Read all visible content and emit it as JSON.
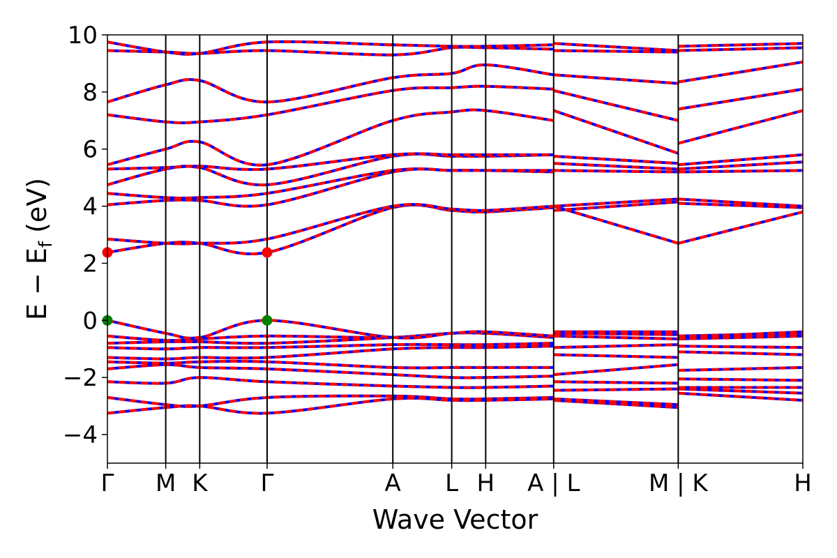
{
  "chart_data": {
    "type": "line",
    "title": "",
    "xlabel": "Wave Vector",
    "ylabel": "E − E_f (eV)",
    "ylabel_main": "E − E",
    "ylabel_sub": "f",
    "ylabel_unit": " (eV)",
    "ylim": [
      -5,
      10
    ],
    "yticks": [
      -4,
      -2,
      0,
      2,
      4,
      6,
      8,
      10
    ],
    "ytick_labels": [
      "−4",
      "−2",
      "0",
      "2",
      "4",
      "6",
      "8",
      "10"
    ],
    "kpath_positions": [
      0.0,
      0.515,
      0.815,
      1.41,
      2.52,
      3.04,
      3.34,
      3.94,
      5.04,
      6.14
    ],
    "xlim": [
      0.0,
      6.14
    ],
    "high_symmetry_labels": [
      "Γ",
      "M",
      "K",
      "Γ",
      "A",
      "L",
      "H",
      "A | L",
      "M | K",
      "H"
    ],
    "grid": false,
    "legend": "none",
    "colors": {
      "band_primary": "#ff0000",
      "band_secondary": "#0000ff",
      "cbm_marker": "#ff0000",
      "vbm_marker": "#008000"
    },
    "band_extrema": [
      {
        "name": "CBM",
        "points": [
          {
            "k": 0.0,
            "e": 2.38
          },
          {
            "k": 1.41,
            "e": 2.38
          }
        ]
      },
      {
        "name": "VBM",
        "points": [
          {
            "k": 0.0,
            "e": 0.0
          },
          {
            "k": 1.41,
            "e": 0.0
          }
        ]
      }
    ],
    "bands": [
      {
        "name": "v1",
        "values": [
          [
            0,
            -3.25
          ],
          [
            0.515,
            -3.05
          ],
          [
            0.815,
            -3.0
          ],
          [
            1.41,
            -3.25
          ],
          [
            2.52,
            -2.75
          ],
          [
            3.04,
            -2.8
          ],
          [
            3.34,
            -2.8
          ],
          [
            3.94,
            -2.75
          ],
          [
            3.94,
            -2.8
          ],
          [
            5.04,
            -3.05
          ],
          [
            5.04,
            -2.55
          ],
          [
            6.14,
            -2.8
          ]
        ]
      },
      {
        "name": "v2",
        "values": [
          [
            0,
            -2.7
          ],
          [
            0.515,
            -2.95
          ],
          [
            0.815,
            -3.0
          ],
          [
            1.41,
            -2.7
          ],
          [
            2.52,
            -2.65
          ],
          [
            3.04,
            -2.75
          ],
          [
            3.34,
            -2.75
          ],
          [
            3.94,
            -2.7
          ],
          [
            3.94,
            -2.75
          ],
          [
            5.04,
            -2.95
          ],
          [
            5.04,
            -2.4
          ],
          [
            6.14,
            -2.55
          ]
        ]
      },
      {
        "name": "v3",
        "values": [
          [
            0,
            -2.15
          ],
          [
            0.515,
            -2.2
          ],
          [
            0.815,
            -2.0
          ],
          [
            1.41,
            -2.15
          ],
          [
            2.52,
            -2.3
          ],
          [
            3.04,
            -2.35
          ],
          [
            3.34,
            -2.35
          ],
          [
            3.94,
            -2.3
          ],
          [
            3.94,
            -2.45
          ],
          [
            5.04,
            -2.4
          ],
          [
            5.04,
            -2.35
          ],
          [
            6.14,
            -2.35
          ]
        ]
      },
      {
        "name": "v4",
        "values": [
          [
            0,
            -1.7
          ],
          [
            0.515,
            -1.55
          ],
          [
            0.815,
            -1.65
          ],
          [
            1.41,
            -1.7
          ],
          [
            2.52,
            -1.9
          ],
          [
            3.04,
            -2.0
          ],
          [
            3.34,
            -2.0
          ],
          [
            3.94,
            -1.95
          ],
          [
            3.94,
            -2.15
          ],
          [
            5.04,
            -2.2
          ],
          [
            5.04,
            -2.05
          ],
          [
            6.14,
            -2.1
          ]
        ]
      },
      {
        "name": "v5",
        "values": [
          [
            0,
            -1.45
          ],
          [
            0.515,
            -1.5
          ],
          [
            0.815,
            -1.45
          ],
          [
            1.41,
            -1.45
          ],
          [
            2.52,
            -1.65
          ],
          [
            3.04,
            -1.65
          ],
          [
            3.34,
            -1.65
          ],
          [
            3.94,
            -1.65
          ],
          [
            3.94,
            -1.9
          ],
          [
            5.04,
            -1.55
          ],
          [
            5.04,
            -1.75
          ],
          [
            6.14,
            -1.65
          ]
        ]
      },
      {
        "name": "v6",
        "values": [
          [
            0,
            -1.3
          ],
          [
            0.515,
            -1.35
          ],
          [
            0.815,
            -1.3
          ],
          [
            1.41,
            -1.3
          ],
          [
            2.52,
            -1.0
          ],
          [
            3.04,
            -0.95
          ],
          [
            3.34,
            -0.95
          ],
          [
            3.94,
            -0.9
          ],
          [
            3.94,
            -1.2
          ],
          [
            5.04,
            -1.3
          ],
          [
            5.04,
            -1.1
          ],
          [
            6.14,
            -1.2
          ]
        ]
      },
      {
        "name": "v7",
        "values": [
          [
            0,
            -0.95
          ],
          [
            0.515,
            -1.0
          ],
          [
            0.815,
            -0.95
          ],
          [
            1.41,
            -0.95
          ],
          [
            2.52,
            -0.85
          ],
          [
            3.04,
            -0.85
          ],
          [
            3.34,
            -0.85
          ],
          [
            3.94,
            -0.8
          ],
          [
            3.94,
            -0.95
          ],
          [
            5.04,
            -0.85
          ],
          [
            5.04,
            -0.9
          ],
          [
            6.14,
            -0.95
          ]
        ]
      },
      {
        "name": "v8",
        "values": [
          [
            0,
            -0.8
          ],
          [
            0.515,
            -0.75
          ],
          [
            0.815,
            -0.75
          ],
          [
            1.41,
            -0.8
          ],
          [
            2.52,
            -0.6
          ],
          [
            3.04,
            -0.45
          ],
          [
            3.34,
            -0.45
          ],
          [
            3.94,
            -0.6
          ],
          [
            3.94,
            -0.55
          ],
          [
            5.04,
            -0.65
          ],
          [
            5.04,
            -0.65
          ],
          [
            6.14,
            -0.55
          ]
        ]
      },
      {
        "name": "v9",
        "values": [
          [
            0,
            -0.55
          ],
          [
            0.515,
            -0.7
          ],
          [
            0.815,
            -0.65
          ],
          [
            1.41,
            -0.55
          ],
          [
            2.52,
            -0.6
          ],
          [
            3.04,
            -0.45
          ],
          [
            3.34,
            -0.45
          ],
          [
            3.94,
            -0.55
          ],
          [
            3.94,
            -0.45
          ],
          [
            5.04,
            -0.5
          ],
          [
            5.04,
            -0.55
          ],
          [
            6.14,
            -0.45
          ]
        ]
      },
      {
        "name": "v10",
        "values": [
          [
            0,
            0.0
          ],
          [
            0.515,
            -0.45
          ],
          [
            0.815,
            -0.6
          ],
          [
            1.41,
            0.0
          ],
          [
            2.52,
            -0.6
          ],
          [
            3.04,
            -0.45
          ],
          [
            3.34,
            -0.4
          ],
          [
            3.94,
            -0.55
          ],
          [
            3.94,
            -0.4
          ],
          [
            5.04,
            -0.4
          ],
          [
            5.04,
            -0.6
          ],
          [
            6.14,
            -0.4
          ]
        ]
      },
      {
        "name": "c1",
        "values": [
          [
            0,
            2.38
          ],
          [
            0.515,
            2.7
          ],
          [
            0.815,
            2.7
          ],
          [
            1.41,
            2.38
          ],
          [
            2.52,
            3.95
          ],
          [
            3.04,
            3.85
          ],
          [
            3.34,
            3.8
          ],
          [
            3.94,
            3.95
          ],
          [
            3.94,
            4.0
          ],
          [
            5.04,
            2.7
          ],
          [
            5.04,
            2.7
          ],
          [
            6.14,
            3.8
          ]
        ]
      },
      {
        "name": "c2",
        "values": [
          [
            0,
            2.85
          ],
          [
            0.515,
            2.7
          ],
          [
            0.815,
            2.7
          ],
          [
            1.41,
            2.85
          ],
          [
            2.52,
            4.0
          ],
          [
            3.04,
            3.9
          ],
          [
            3.34,
            3.85
          ],
          [
            3.94,
            4.0
          ],
          [
            3.94,
            3.85
          ],
          [
            5.04,
            4.15
          ],
          [
            5.04,
            4.1
          ],
          [
            6.14,
            3.95
          ]
        ]
      },
      {
        "name": "c3",
        "values": [
          [
            0,
            4.05
          ],
          [
            0.515,
            4.2
          ],
          [
            0.815,
            4.2
          ],
          [
            1.41,
            4.05
          ],
          [
            2.52,
            5.2
          ],
          [
            3.04,
            5.25
          ],
          [
            3.34,
            5.25
          ],
          [
            3.94,
            5.2
          ],
          [
            3.94,
            4.0
          ],
          [
            5.04,
            4.25
          ],
          [
            5.04,
            4.25
          ],
          [
            6.14,
            4.0
          ]
        ]
      },
      {
        "name": "c4",
        "values": [
          [
            0,
            4.45
          ],
          [
            0.515,
            4.3
          ],
          [
            0.815,
            4.3
          ],
          [
            1.41,
            4.45
          ],
          [
            2.52,
            5.25
          ],
          [
            3.04,
            5.25
          ],
          [
            3.34,
            5.25
          ],
          [
            3.94,
            5.25
          ],
          [
            3.94,
            5.25
          ],
          [
            5.04,
            5.2
          ],
          [
            5.04,
            5.2
          ],
          [
            6.14,
            5.25
          ]
        ]
      },
      {
        "name": "c5",
        "values": [
          [
            0,
            4.75
          ],
          [
            0.515,
            5.3
          ],
          [
            0.815,
            5.35
          ],
          [
            1.41,
            4.75
          ],
          [
            2.52,
            5.75
          ],
          [
            3.04,
            5.75
          ],
          [
            3.34,
            5.75
          ],
          [
            3.94,
            5.8
          ],
          [
            3.94,
            5.5
          ],
          [
            5.04,
            5.3
          ],
          [
            5.04,
            5.3
          ],
          [
            6.14,
            5.55
          ]
        ]
      },
      {
        "name": "c6",
        "values": [
          [
            0,
            5.3
          ],
          [
            0.515,
            5.35
          ],
          [
            0.815,
            5.4
          ],
          [
            1.41,
            5.3
          ],
          [
            2.52,
            5.8
          ],
          [
            3.04,
            5.8
          ],
          [
            3.34,
            5.8
          ],
          [
            3.94,
            5.8
          ],
          [
            3.94,
            5.75
          ],
          [
            5.04,
            5.5
          ],
          [
            5.04,
            5.45
          ],
          [
            6.14,
            5.8
          ]
        ]
      },
      {
        "name": "c7",
        "values": [
          [
            0,
            5.45
          ],
          [
            0.515,
            6.0
          ],
          [
            0.815,
            6.25
          ],
          [
            1.41,
            5.45
          ],
          [
            2.52,
            7.0
          ],
          [
            3.04,
            7.3
          ],
          [
            3.34,
            7.35
          ],
          [
            3.94,
            7.0
          ],
          [
            3.94,
            7.35
          ],
          [
            5.04,
            5.85
          ],
          [
            5.04,
            6.2
          ],
          [
            6.14,
            7.35
          ]
        ]
      },
      {
        "name": "c8",
        "values": [
          [
            0,
            7.2
          ],
          [
            0.515,
            6.95
          ],
          [
            0.815,
            6.95
          ],
          [
            1.41,
            7.2
          ],
          [
            2.52,
            8.05
          ],
          [
            3.04,
            8.15
          ],
          [
            3.34,
            8.2
          ],
          [
            3.94,
            8.1
          ],
          [
            3.94,
            8.05
          ],
          [
            5.04,
            7.0
          ],
          [
            5.04,
            7.4
          ],
          [
            6.14,
            8.1
          ]
        ]
      },
      {
        "name": "c9",
        "values": [
          [
            0,
            7.65
          ],
          [
            0.515,
            8.25
          ],
          [
            0.815,
            8.4
          ],
          [
            1.41,
            7.65
          ],
          [
            2.52,
            8.5
          ],
          [
            3.04,
            8.65
          ],
          [
            3.34,
            8.95
          ],
          [
            3.94,
            8.6
          ],
          [
            3.94,
            8.6
          ],
          [
            5.04,
            8.3
          ],
          [
            5.04,
            8.35
          ],
          [
            6.14,
            9.05
          ]
        ]
      },
      {
        "name": "c10",
        "values": [
          [
            0,
            9.45
          ],
          [
            0.515,
            9.4
          ],
          [
            0.815,
            9.35
          ],
          [
            1.41,
            9.45
          ],
          [
            2.52,
            9.3
          ],
          [
            3.04,
            9.55
          ],
          [
            3.34,
            9.55
          ],
          [
            3.94,
            9.5
          ],
          [
            3.94,
            9.45
          ],
          [
            5.04,
            9.4
          ],
          [
            5.04,
            9.45
          ],
          [
            6.14,
            9.55
          ]
        ]
      },
      {
        "name": "c11",
        "values": [
          [
            0,
            9.75
          ],
          [
            0.515,
            9.4
          ],
          [
            0.815,
            9.35
          ],
          [
            1.41,
            9.75
          ],
          [
            2.52,
            9.65
          ],
          [
            3.04,
            9.6
          ],
          [
            3.34,
            9.6
          ],
          [
            3.94,
            9.65
          ],
          [
            3.94,
            9.7
          ],
          [
            5.04,
            9.45
          ],
          [
            5.04,
            9.6
          ],
          [
            6.14,
            9.7
          ]
        ]
      }
    ]
  }
}
